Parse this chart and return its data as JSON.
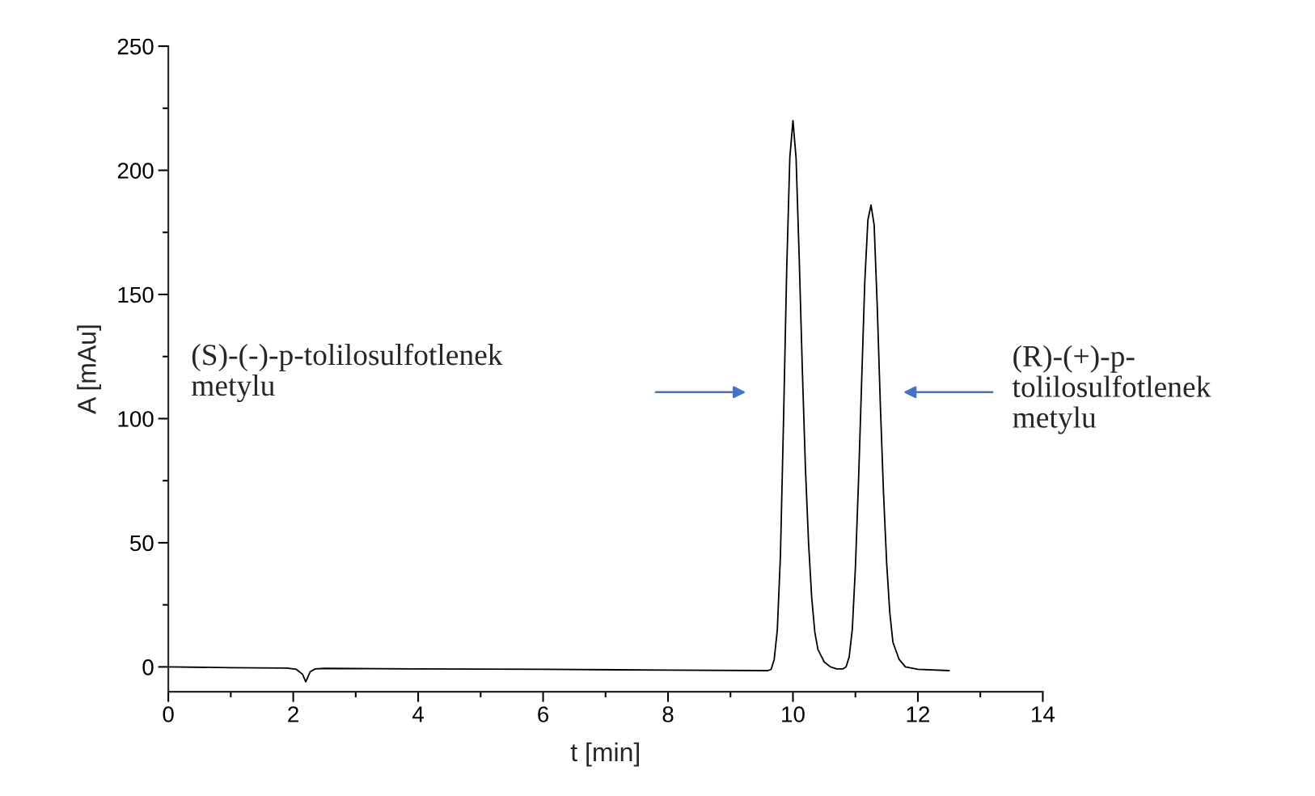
{
  "chart_data": {
    "type": "line",
    "xlabel": "t [min]",
    "ylabel": "A [mAu]",
    "xlim": [
      0,
      14
    ],
    "ylim": [
      -10,
      250
    ],
    "xticks": [
      0,
      {
        "value": 1,
        "label": null
      },
      2,
      {
        "value": 3,
        "label": null
      },
      4,
      {
        "value": 5,
        "label": null
      },
      6,
      {
        "value": 7,
        "label": null
      },
      8,
      {
        "value": 9,
        "label": null
      },
      10,
      {
        "value": 11,
        "label": null
      },
      12,
      {
        "value": 13,
        "label": null
      },
      14
    ],
    "yticks": [
      0,
      {
        "value": 25,
        "label": null
      },
      50,
      {
        "value": 75,
        "label": null
      },
      100,
      {
        "value": 125,
        "label": null
      },
      150,
      {
        "value": 175,
        "label": null
      },
      200,
      {
        "value": 225,
        "label": null
      },
      250
    ],
    "grid": false,
    "series": [
      {
        "color": "#000000",
        "x": [
          0,
          1,
          1.9,
          2.05,
          2.15,
          2.2,
          2.27,
          2.35,
          2.5,
          4,
          6,
          8,
          9.6,
          9.65,
          9.7,
          9.75,
          9.8,
          9.85,
          9.9,
          9.95,
          10.0,
          10.05,
          10.1,
          10.15,
          10.2,
          10.25,
          10.3,
          10.35,
          10.4,
          10.5,
          10.6,
          10.7,
          10.8,
          10.85,
          10.9,
          10.95,
          11.0,
          11.05,
          11.1,
          11.15,
          11.2,
          11.25,
          11.3,
          11.35,
          11.4,
          11.45,
          11.5,
          11.55,
          11.6,
          11.7,
          11.8,
          12,
          12.5
        ],
        "values": [
          0,
          -0.3,
          -0.5,
          -1,
          -3,
          -6,
          -2,
          -0.8,
          -0.6,
          -0.8,
          -1,
          -1.3,
          -1.5,
          -1,
          3,
          15,
          45,
          100,
          160,
          205,
          220,
          205,
          165,
          120,
          80,
          50,
          28,
          14,
          7,
          2,
          0,
          -0.8,
          -0.8,
          0,
          4,
          15,
          40,
          75,
          115,
          155,
          180,
          186,
          178,
          145,
          105,
          70,
          42,
          22,
          10,
          3,
          0,
          -1,
          -1.5
        ]
      }
    ],
    "annotations": [
      "(S)-(-)-p-tolilosulfotlenek\nmetylu",
      "(R)-(+)-p-\ntolilosulfotlenek\nmetylu"
    ]
  }
}
